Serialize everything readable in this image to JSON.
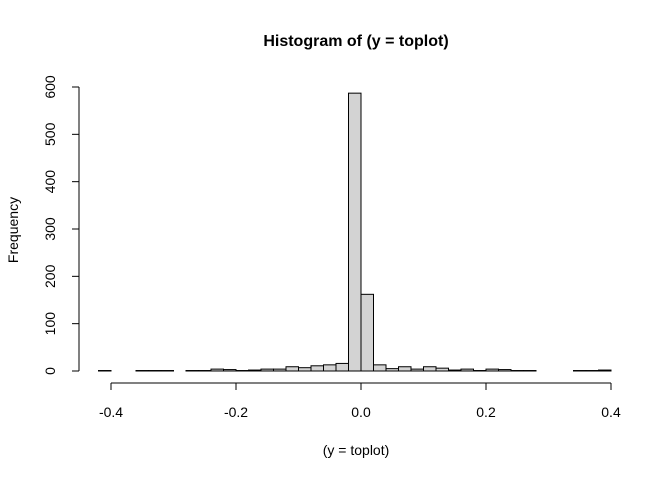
{
  "chart_data": {
    "type": "bar",
    "title": "Histogram of (y = toplot)",
    "xlabel": "(y = toplot)",
    "ylabel": "Frequency",
    "xlim": [
      -0.42,
      0.4
    ],
    "ylim": [
      0,
      600
    ],
    "bin_width": 0.02,
    "grid": false,
    "bar_fill": "#d3d3d3",
    "bar_stroke": "#000000",
    "x_ticks": [
      {
        "value": -0.4,
        "label": "-0.4"
      },
      {
        "value": -0.2,
        "label": "-0.2"
      },
      {
        "value": 0.0,
        "label": "0.0"
      },
      {
        "value": 0.2,
        "label": "0.2"
      },
      {
        "value": 0.4,
        "label": "0.4"
      }
    ],
    "y_ticks": [
      {
        "value": 0,
        "label": "0"
      },
      {
        "value": 100,
        "label": "100"
      },
      {
        "value": 200,
        "label": "200"
      },
      {
        "value": 300,
        "label": "300"
      },
      {
        "value": 400,
        "label": "400"
      },
      {
        "value": 500,
        "label": "500"
      },
      {
        "value": 600,
        "label": "600"
      }
    ],
    "bins": [
      {
        "x0": -0.42,
        "x1": -0.4,
        "count": 1
      },
      {
        "x0": -0.4,
        "x1": -0.38,
        "count": 0
      },
      {
        "x0": -0.38,
        "x1": -0.36,
        "count": 0
      },
      {
        "x0": -0.36,
        "x1": -0.34,
        "count": 1
      },
      {
        "x0": -0.34,
        "x1": -0.32,
        "count": 1
      },
      {
        "x0": -0.32,
        "x1": -0.3,
        "count": 1
      },
      {
        "x0": -0.3,
        "x1": -0.28,
        "count": 0
      },
      {
        "x0": -0.28,
        "x1": -0.26,
        "count": 1
      },
      {
        "x0": -0.26,
        "x1": -0.24,
        "count": 1
      },
      {
        "x0": -0.24,
        "x1": -0.22,
        "count": 4
      },
      {
        "x0": -0.22,
        "x1": -0.2,
        "count": 3
      },
      {
        "x0": -0.2,
        "x1": -0.18,
        "count": 1
      },
      {
        "x0": -0.18,
        "x1": -0.16,
        "count": 2
      },
      {
        "x0": -0.16,
        "x1": -0.14,
        "count": 4
      },
      {
        "x0": -0.14,
        "x1": -0.12,
        "count": 4
      },
      {
        "x0": -0.12,
        "x1": -0.1,
        "count": 9
      },
      {
        "x0": -0.1,
        "x1": -0.08,
        "count": 7
      },
      {
        "x0": -0.08,
        "x1": -0.06,
        "count": 11
      },
      {
        "x0": -0.06,
        "x1": -0.04,
        "count": 13
      },
      {
        "x0": -0.04,
        "x1": -0.02,
        "count": 16
      },
      {
        "x0": -0.02,
        "x1": 0.0,
        "count": 587
      },
      {
        "x0": 0.0,
        "x1": 0.02,
        "count": 162
      },
      {
        "x0": 0.02,
        "x1": 0.04,
        "count": 13
      },
      {
        "x0": 0.04,
        "x1": 0.06,
        "count": 5
      },
      {
        "x0": 0.06,
        "x1": 0.08,
        "count": 9
      },
      {
        "x0": 0.08,
        "x1": 0.1,
        "count": 4
      },
      {
        "x0": 0.1,
        "x1": 0.12,
        "count": 9
      },
      {
        "x0": 0.12,
        "x1": 0.14,
        "count": 6
      },
      {
        "x0": 0.14,
        "x1": 0.16,
        "count": 2
      },
      {
        "x0": 0.16,
        "x1": 0.18,
        "count": 4
      },
      {
        "x0": 0.18,
        "x1": 0.2,
        "count": 1
      },
      {
        "x0": 0.2,
        "x1": 0.22,
        "count": 4
      },
      {
        "x0": 0.22,
        "x1": 0.24,
        "count": 3
      },
      {
        "x0": 0.24,
        "x1": 0.26,
        "count": 1
      },
      {
        "x0": 0.26,
        "x1": 0.28,
        "count": 1
      },
      {
        "x0": 0.28,
        "x1": 0.3,
        "count": 0
      },
      {
        "x0": 0.3,
        "x1": 0.32,
        "count": 0
      },
      {
        "x0": 0.32,
        "x1": 0.34,
        "count": 0
      },
      {
        "x0": 0.34,
        "x1": 0.36,
        "count": 1
      },
      {
        "x0": 0.36,
        "x1": 0.38,
        "count": 1
      },
      {
        "x0": 0.38,
        "x1": 0.4,
        "count": 2
      }
    ]
  }
}
